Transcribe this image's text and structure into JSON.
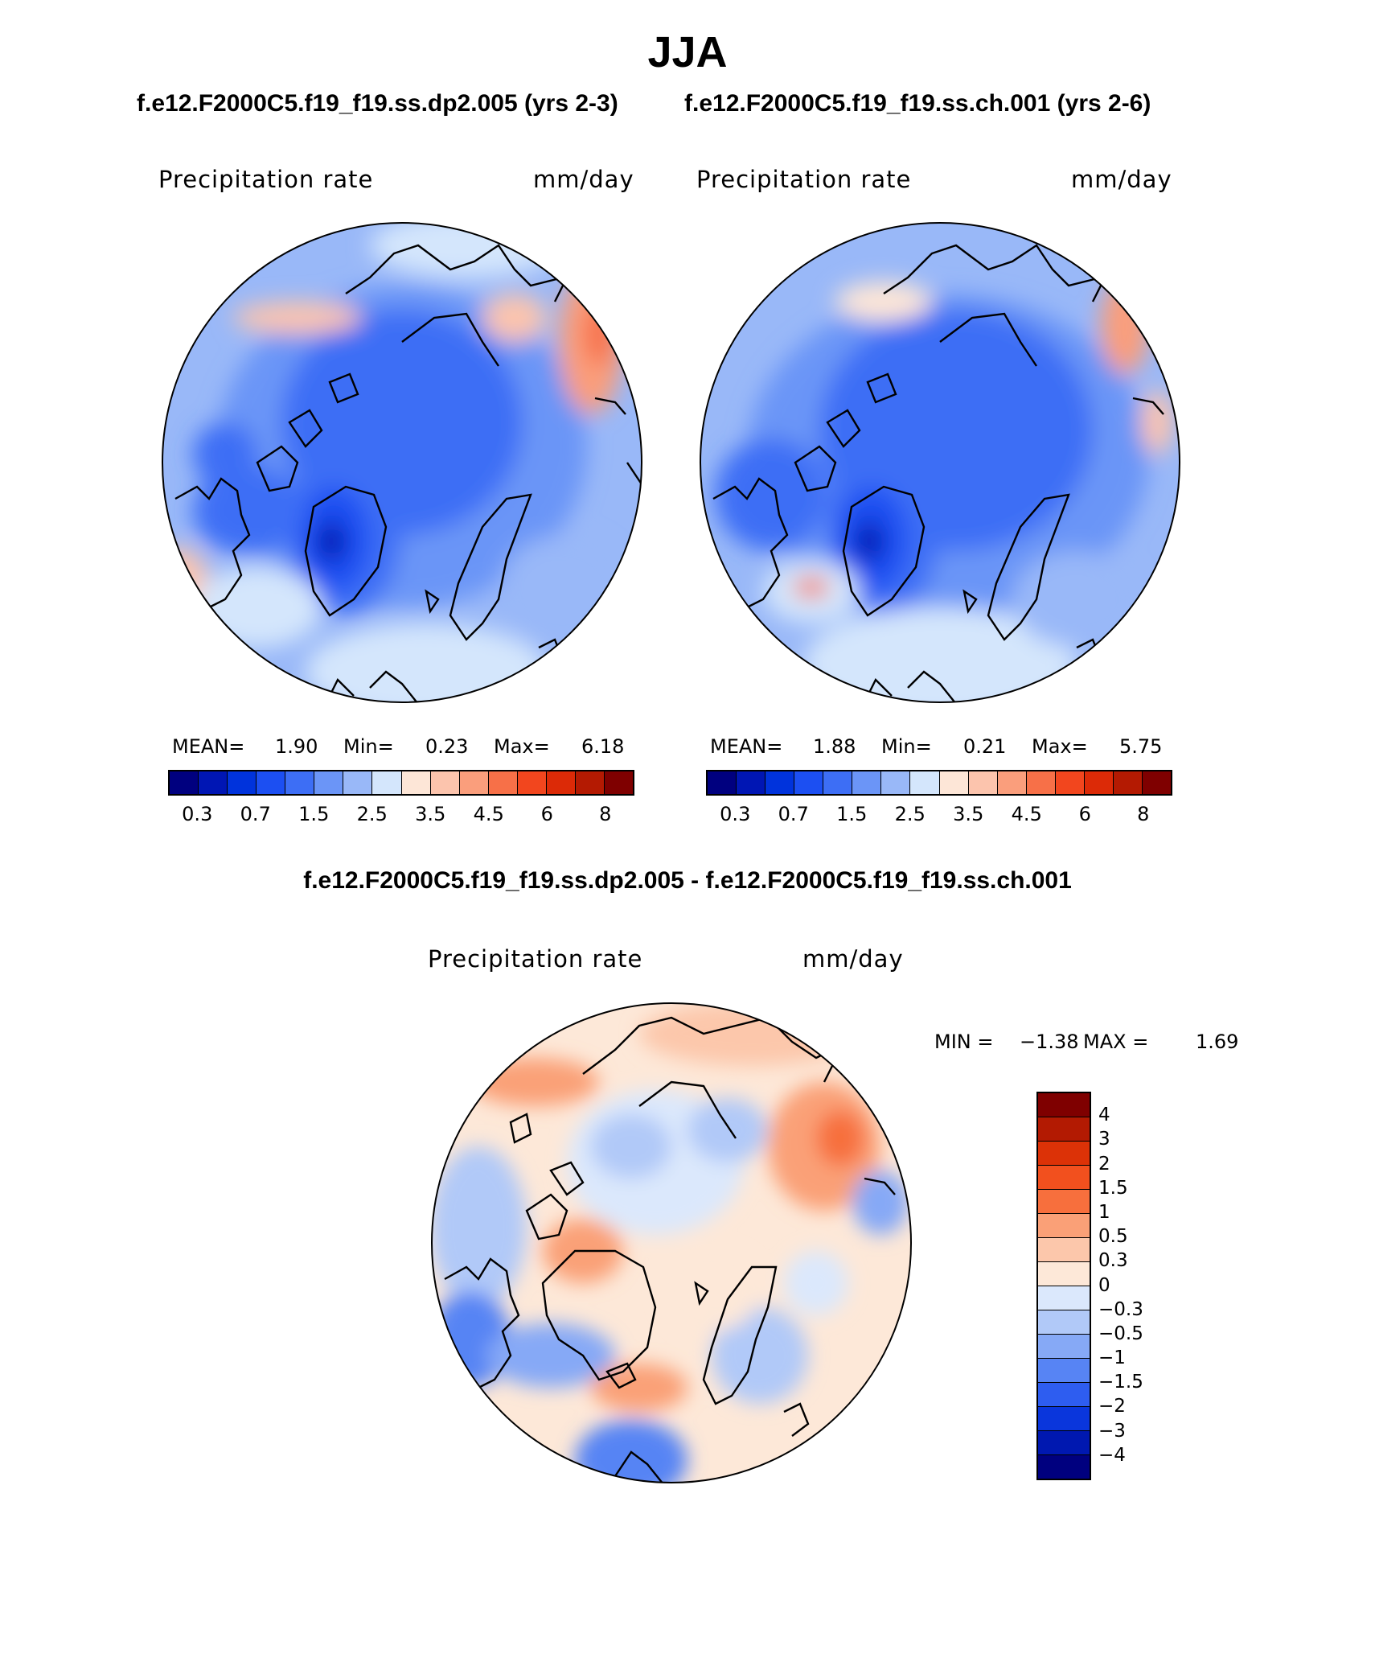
{
  "figure": {
    "season": "JJA",
    "case1_title": "f.e12.F2000C5.f19_f19.ss.dp2.005 (yrs 2-3)",
    "case2_title": "f.e12.F2000C5.f19_f19.ss.ch.001 (yrs 2-6)",
    "diff_title": "f.e12.F2000C5.f19_f19.ss.dp2.005 - f.e12.F2000C5.f19_f19.ss.ch.001"
  },
  "chart_data": [
    {
      "type": "heatmap",
      "projection": "north-polar-stereographic",
      "title": "Precipitation rate",
      "units": "mm/day",
      "stats": {
        "mean_label": "MEAN=",
        "mean": "1.90",
        "min_label": "Min=",
        "min": "0.23",
        "max_label": "Max=",
        "max": "6.18"
      },
      "colorbar": {
        "colors": [
          "#00007f",
          "#0016b4",
          "#0033dc",
          "#1c4ff2",
          "#3d6ef5",
          "#6b95f7",
          "#99b8f8",
          "#d4e6fc",
          "#fde6d7",
          "#fcc4ad",
          "#fa9e7c",
          "#f77048",
          "#f2461e",
          "#dc2a07",
          "#b41a02",
          "#7f0000"
        ],
        "tick_labels": [
          "0.3",
          "0.7",
          "1.5",
          "2.5",
          "3.5",
          "4.5",
          "6",
          "8"
        ]
      }
    },
    {
      "type": "heatmap",
      "projection": "north-polar-stereographic",
      "title": "Precipitation rate",
      "units": "mm/day",
      "stats": {
        "mean_label": "MEAN=",
        "mean": "1.88",
        "min_label": "Min=",
        "min": "0.21",
        "max_label": "Max=",
        "max": "5.75"
      },
      "colorbar": {
        "colors": [
          "#00007f",
          "#0016b4",
          "#0033dc",
          "#1c4ff2",
          "#3d6ef5",
          "#6b95f7",
          "#99b8f8",
          "#d4e6fc",
          "#fde6d7",
          "#fcc4ad",
          "#fa9e7c",
          "#f77048",
          "#f2461e",
          "#dc2a07",
          "#b41a02",
          "#7f0000"
        ],
        "tick_labels": [
          "0.3",
          "0.7",
          "1.5",
          "2.5",
          "3.5",
          "4.5",
          "6",
          "8"
        ]
      }
    },
    {
      "type": "heatmap",
      "projection": "north-polar-stereographic",
      "title": "Precipitation rate",
      "units": "mm/day",
      "stats": {
        "min_label": "MIN =",
        "min": "−1.38",
        "max_label": "MAX =",
        "max": "1.69"
      },
      "colorbar": {
        "colors_top_to_bottom": [
          "#7f0000",
          "#b31a02",
          "#dc3207",
          "#f2501e",
          "#f76f3d",
          "#faa077",
          "#fcc7ab",
          "#fde8d8",
          "#dbe8fc",
          "#b1c9f8",
          "#86a9f6",
          "#5784f4",
          "#2e5df0",
          "#0a36dc",
          "#0018b0",
          "#00007f"
        ],
        "tick_labels": [
          "4",
          "3",
          "2",
          "1.5",
          "1",
          "0.5",
          "0.3",
          "0",
          "−0.3",
          "−0.5",
          "−1",
          "−1.5",
          "−2",
          "−3",
          "−4"
        ]
      }
    }
  ]
}
